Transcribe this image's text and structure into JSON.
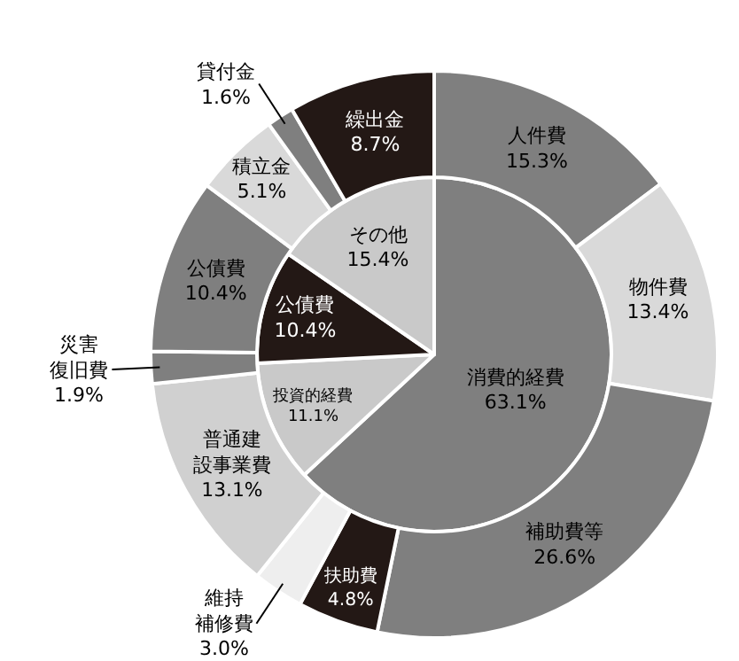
{
  "chart_data": [
    {
      "type": "pie",
      "categories": [
        "消費的経費",
        "投資的経費",
        "公債費",
        "その他"
      ],
      "values": [
        63.1,
        11.1,
        10.4,
        15.4
      ],
      "value_labels": [
        "63.1%",
        "11.1%",
        "10.4%",
        "15.4%"
      ],
      "colors": [
        "#7f7f7f",
        "#c9c9c9",
        "#231815",
        "#c9c9c9"
      ]
    },
    {
      "type": "donut",
      "categories": [
        "人件費",
        "物件費",
        "補助費等",
        "扶助費",
        "維持補修費",
        "普通建設事業費",
        "災害復旧費",
        "公債費",
        "積立金",
        "貸付金",
        "繰出金"
      ],
      "values": [
        15.3,
        13.4,
        26.6,
        4.8,
        3.0,
        13.1,
        1.9,
        10.4,
        5.1,
        1.6,
        8.7
      ],
      "value_labels": [
        "15.3%",
        "13.4%",
        "26.6%",
        "4.8%",
        "3.0%",
        "13.1%",
        "1.9%",
        "10.4%",
        "5.1%",
        "1.6%",
        "8.7%"
      ],
      "colors": [
        "#7f7f7f",
        "#d9d9d9",
        "#7f7f7f",
        "#231815",
        "#eeeeee",
        "#d0d0d0",
        "#7f7f7f",
        "#7f7f7f",
        "#d9d9d9",
        "#7f7f7f",
        "#231815"
      ]
    }
  ]
}
